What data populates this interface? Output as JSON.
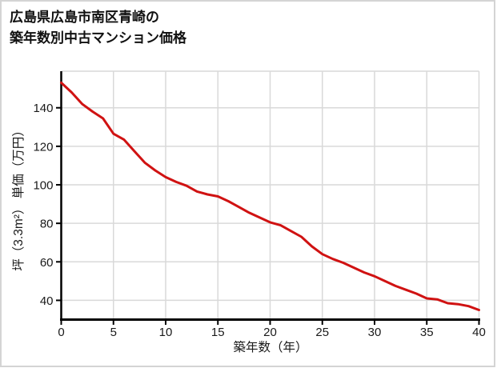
{
  "header": {
    "title_line1": "広島県広島市南区青崎の",
    "title_line2": "築年数別中古マンション価格"
  },
  "chart_data": {
    "type": "line",
    "title": "広島県広島市南区青崎の築年数別中古マンション価格",
    "xlabel": "築年数（年）",
    "ylabel": "坪（3.3m²） 単価（万円）",
    "x": [
      0,
      1,
      2,
      3,
      4,
      5,
      6,
      7,
      8,
      9,
      10,
      11,
      12,
      13,
      14,
      15,
      16,
      17,
      18,
      19,
      20,
      21,
      22,
      23,
      24,
      25,
      26,
      27,
      28,
      29,
      30,
      31,
      32,
      33,
      34,
      35,
      36,
      37,
      38,
      39,
      40
    ],
    "values": [
      153,
      148,
      142,
      138,
      134.5,
      126.5,
      123.5,
      117.5,
      111.5,
      107.5,
      104,
      101.5,
      99.5,
      96.5,
      95,
      94,
      91.5,
      88.5,
      85.5,
      83,
      80.5,
      79,
      76,
      73,
      68,
      64,
      61.5,
      59.5,
      57,
      54.5,
      52.5,
      50,
      47.5,
      45.5,
      43.5,
      41,
      40.5,
      38.5,
      38,
      37,
      35
    ],
    "series_name": "坪単価",
    "xlim": [
      0,
      40
    ],
    "ylim": [
      30,
      159
    ],
    "x_ticks": [
      0,
      5,
      10,
      15,
      20,
      25,
      30,
      35,
      40
    ],
    "y_ticks": [
      40,
      60,
      80,
      100,
      120,
      140
    ],
    "grid": true,
    "legend": "none",
    "colors": {
      "line": "#d01212",
      "grid": "#d9d9d9",
      "axis": "#000000",
      "text": "#1a1a1a",
      "card_border": "#d4d4d4",
      "background": "#ffffff"
    }
  }
}
